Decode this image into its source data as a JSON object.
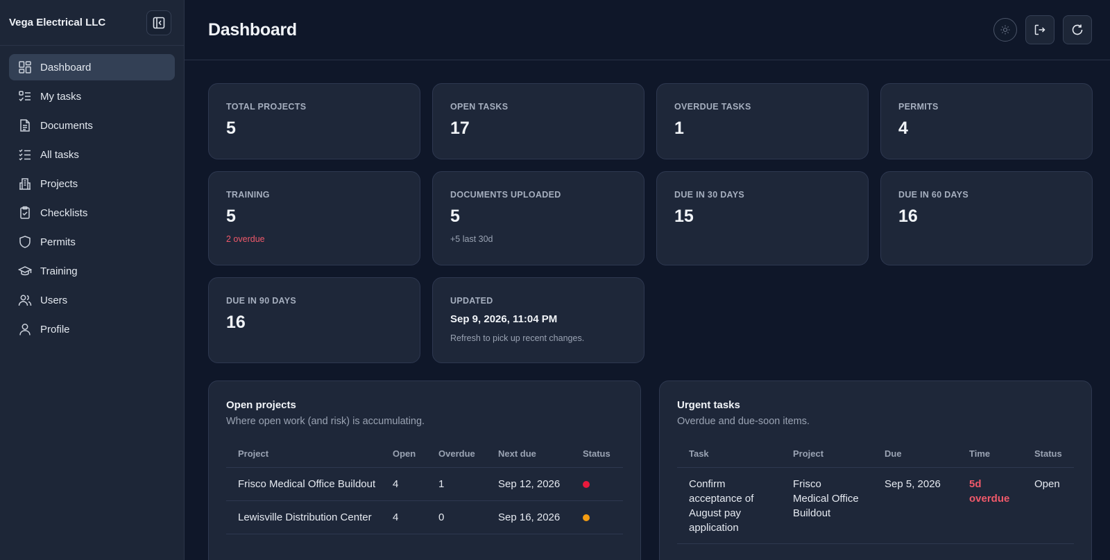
{
  "sidebar": {
    "company": "Vega Electrical LLC",
    "items": [
      {
        "label": "Dashboard",
        "icon": "dashboard-icon"
      },
      {
        "label": "My tasks",
        "icon": "task-list-icon"
      },
      {
        "label": "Documents",
        "icon": "document-icon"
      },
      {
        "label": "All tasks",
        "icon": "checklist-icon"
      },
      {
        "label": "Projects",
        "icon": "building-icon"
      },
      {
        "label": "Checklists",
        "icon": "clipboard-icon"
      },
      {
        "label": "Permits",
        "icon": "shield-icon"
      },
      {
        "label": "Training",
        "icon": "graduation-cap-icon"
      },
      {
        "label": "Users",
        "icon": "users-icon"
      },
      {
        "label": "Profile",
        "icon": "user-icon"
      }
    ]
  },
  "header": {
    "title": "Dashboard"
  },
  "stats": {
    "total_projects": {
      "label": "TOTAL PROJECTS",
      "value": "5"
    },
    "open_tasks": {
      "label": "OPEN TASKS",
      "value": "17"
    },
    "overdue_tasks": {
      "label": "OVERDUE TASKS",
      "value": "1"
    },
    "permits": {
      "label": "PERMITS",
      "value": "4"
    },
    "training": {
      "label": "TRAINING",
      "value": "5",
      "sub": "2 overdue"
    },
    "documents": {
      "label": "DOCUMENTS UPLOADED",
      "value": "5",
      "sub": "+5 last 30d"
    },
    "due30": {
      "label": "DUE IN 30 DAYS",
      "value": "15"
    },
    "due60": {
      "label": "DUE IN 60 DAYS",
      "value": "16"
    },
    "due90": {
      "label": "DUE IN 90 DAYS",
      "value": "16"
    },
    "updated": {
      "label": "UPDATED",
      "value": "Sep 9, 2026, 11:04 PM",
      "sub": "Refresh to pick up recent changes."
    }
  },
  "open_projects": {
    "title": "Open projects",
    "subtitle": "Where open work (and risk) is accumulating.",
    "columns": [
      "Project",
      "Open",
      "Overdue",
      "Next due",
      "Status"
    ],
    "rows": [
      {
        "project": "Frisco Medical Office Buildout",
        "open": "4",
        "overdue": "1",
        "next_due": "Sep 12, 2026",
        "status_color": "#e8193c"
      },
      {
        "project": "Lewisville Distribution Center",
        "open": "4",
        "overdue": "0",
        "next_due": "Sep 16, 2026",
        "status_color": "#f39c12"
      }
    ]
  },
  "urgent_tasks": {
    "title": "Urgent tasks",
    "subtitle": "Overdue and due-soon items.",
    "columns": [
      "Task",
      "Project",
      "Due",
      "Time",
      "Status"
    ],
    "rows": [
      {
        "task": "Confirm acceptance of August pay application",
        "project": "Frisco Medical Office Buildout",
        "due": "Sep 5, 2026",
        "time": "5d overdue",
        "status": "Open"
      }
    ]
  },
  "colors": {
    "danger": "#f0596a",
    "bg": "#0f1729",
    "card": "#1e2739"
  }
}
